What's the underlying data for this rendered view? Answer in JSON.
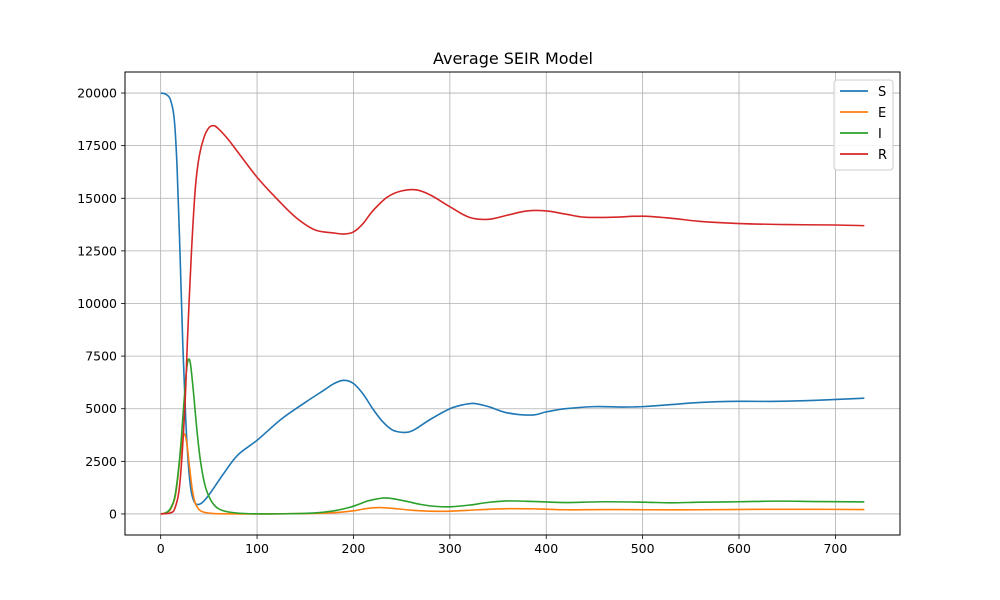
{
  "chart_data": {
    "type": "line",
    "title": "Average SEIR Model",
    "xlabel": "",
    "ylabel": "",
    "xlim": [
      -37,
      767
    ],
    "ylim": [
      -1000,
      21000
    ],
    "xticks": [
      0,
      100,
      200,
      300,
      400,
      500,
      600,
      700
    ],
    "yticks": [
      0,
      2500,
      5000,
      7500,
      10000,
      12500,
      15000,
      17500,
      20000
    ],
    "grid": true,
    "legend_position": "top-right",
    "series": [
      {
        "name": "S",
        "color": "#1f77b4",
        "x": [
          0,
          5,
          10,
          14,
          17,
          20,
          23,
          26,
          29,
          32,
          36,
          42,
          50,
          65,
          80,
          100,
          125,
          150,
          170,
          180,
          190,
          200,
          210,
          220,
          230,
          240,
          250,
          258,
          265,
          280,
          300,
          315,
          325,
          340,
          360,
          385,
          400,
          420,
          450,
          480,
          500,
          530,
          560,
          600,
          640,
          680,
          730
        ],
        "values": [
          20000,
          19950,
          19700,
          18800,
          16500,
          12500,
          8000,
          4500,
          2200,
          1000,
          500,
          500,
          900,
          1900,
          2800,
          3500,
          4500,
          5300,
          5900,
          6200,
          6350,
          6200,
          5700,
          5000,
          4400,
          4000,
          3880,
          3900,
          4050,
          4500,
          5000,
          5200,
          5250,
          5100,
          4800,
          4700,
          4850,
          5000,
          5100,
          5080,
          5100,
          5200,
          5300,
          5350,
          5350,
          5400,
          5500
        ]
      },
      {
        "name": "E",
        "color": "#ff7f0e",
        "x": [
          0,
          5,
          10,
          15,
          18,
          21,
          24,
          27,
          30,
          33,
          36,
          40,
          45,
          55,
          70,
          100,
          150,
          180,
          200,
          210,
          220,
          230,
          240,
          260,
          280,
          300,
          330,
          360,
          390,
          420,
          460,
          500,
          560,
          620,
          680,
          730
        ],
        "values": [
          0,
          50,
          200,
          800,
          1800,
          3000,
          3800,
          3400,
          2200,
          1100,
          500,
          200,
          80,
          20,
          5,
          0,
          20,
          60,
          150,
          230,
          290,
          300,
          270,
          180,
          130,
          130,
          200,
          250,
          240,
          200,
          210,
          200,
          200,
          220,
          220,
          210
        ]
      },
      {
        "name": "I",
        "color": "#2ca02c",
        "x": [
          0,
          5,
          10,
          15,
          20,
          24,
          27,
          29,
          31,
          34,
          38,
          42,
          47,
          55,
          65,
          80,
          100,
          130,
          160,
          180,
          195,
          205,
          215,
          225,
          232,
          240,
          255,
          270,
          285,
          300,
          320,
          340,
          360,
          380,
          400,
          420,
          460,
          500,
          530,
          560,
          600,
          640,
          680,
          730
        ],
        "values": [
          0,
          50,
          250,
          900,
          2800,
          5200,
          6900,
          7350,
          7100,
          5800,
          3800,
          2300,
          1200,
          450,
          150,
          40,
          5,
          10,
          50,
          150,
          300,
          450,
          620,
          720,
          760,
          730,
          600,
          450,
          360,
          340,
          420,
          550,
          620,
          600,
          570,
          540,
          580,
          560,
          530,
          560,
          580,
          610,
          590,
          570
        ]
      },
      {
        "name": "R",
        "color": "#d62728",
        "x": [
          0,
          10,
          15,
          20,
          25,
          28,
          32,
          36,
          40,
          45,
          50,
          55,
          60,
          70,
          80,
          100,
          120,
          140,
          160,
          180,
          190,
          200,
          210,
          220,
          235,
          250,
          265,
          280,
          300,
          320,
          340,
          360,
          380,
          400,
          420,
          440,
          470,
          500,
          530,
          560,
          600,
          650,
          700,
          730
        ],
        "values": [
          0,
          50,
          300,
          1500,
          5000,
          8500,
          12500,
          15500,
          17000,
          17900,
          18350,
          18450,
          18300,
          17800,
          17200,
          16000,
          15000,
          14100,
          13500,
          13350,
          13300,
          13400,
          13800,
          14400,
          15050,
          15350,
          15400,
          15150,
          14600,
          14100,
          14000,
          14200,
          14400,
          14400,
          14250,
          14100,
          14100,
          14150,
          14050,
          13900,
          13800,
          13750,
          13730,
          13700
        ]
      }
    ]
  }
}
